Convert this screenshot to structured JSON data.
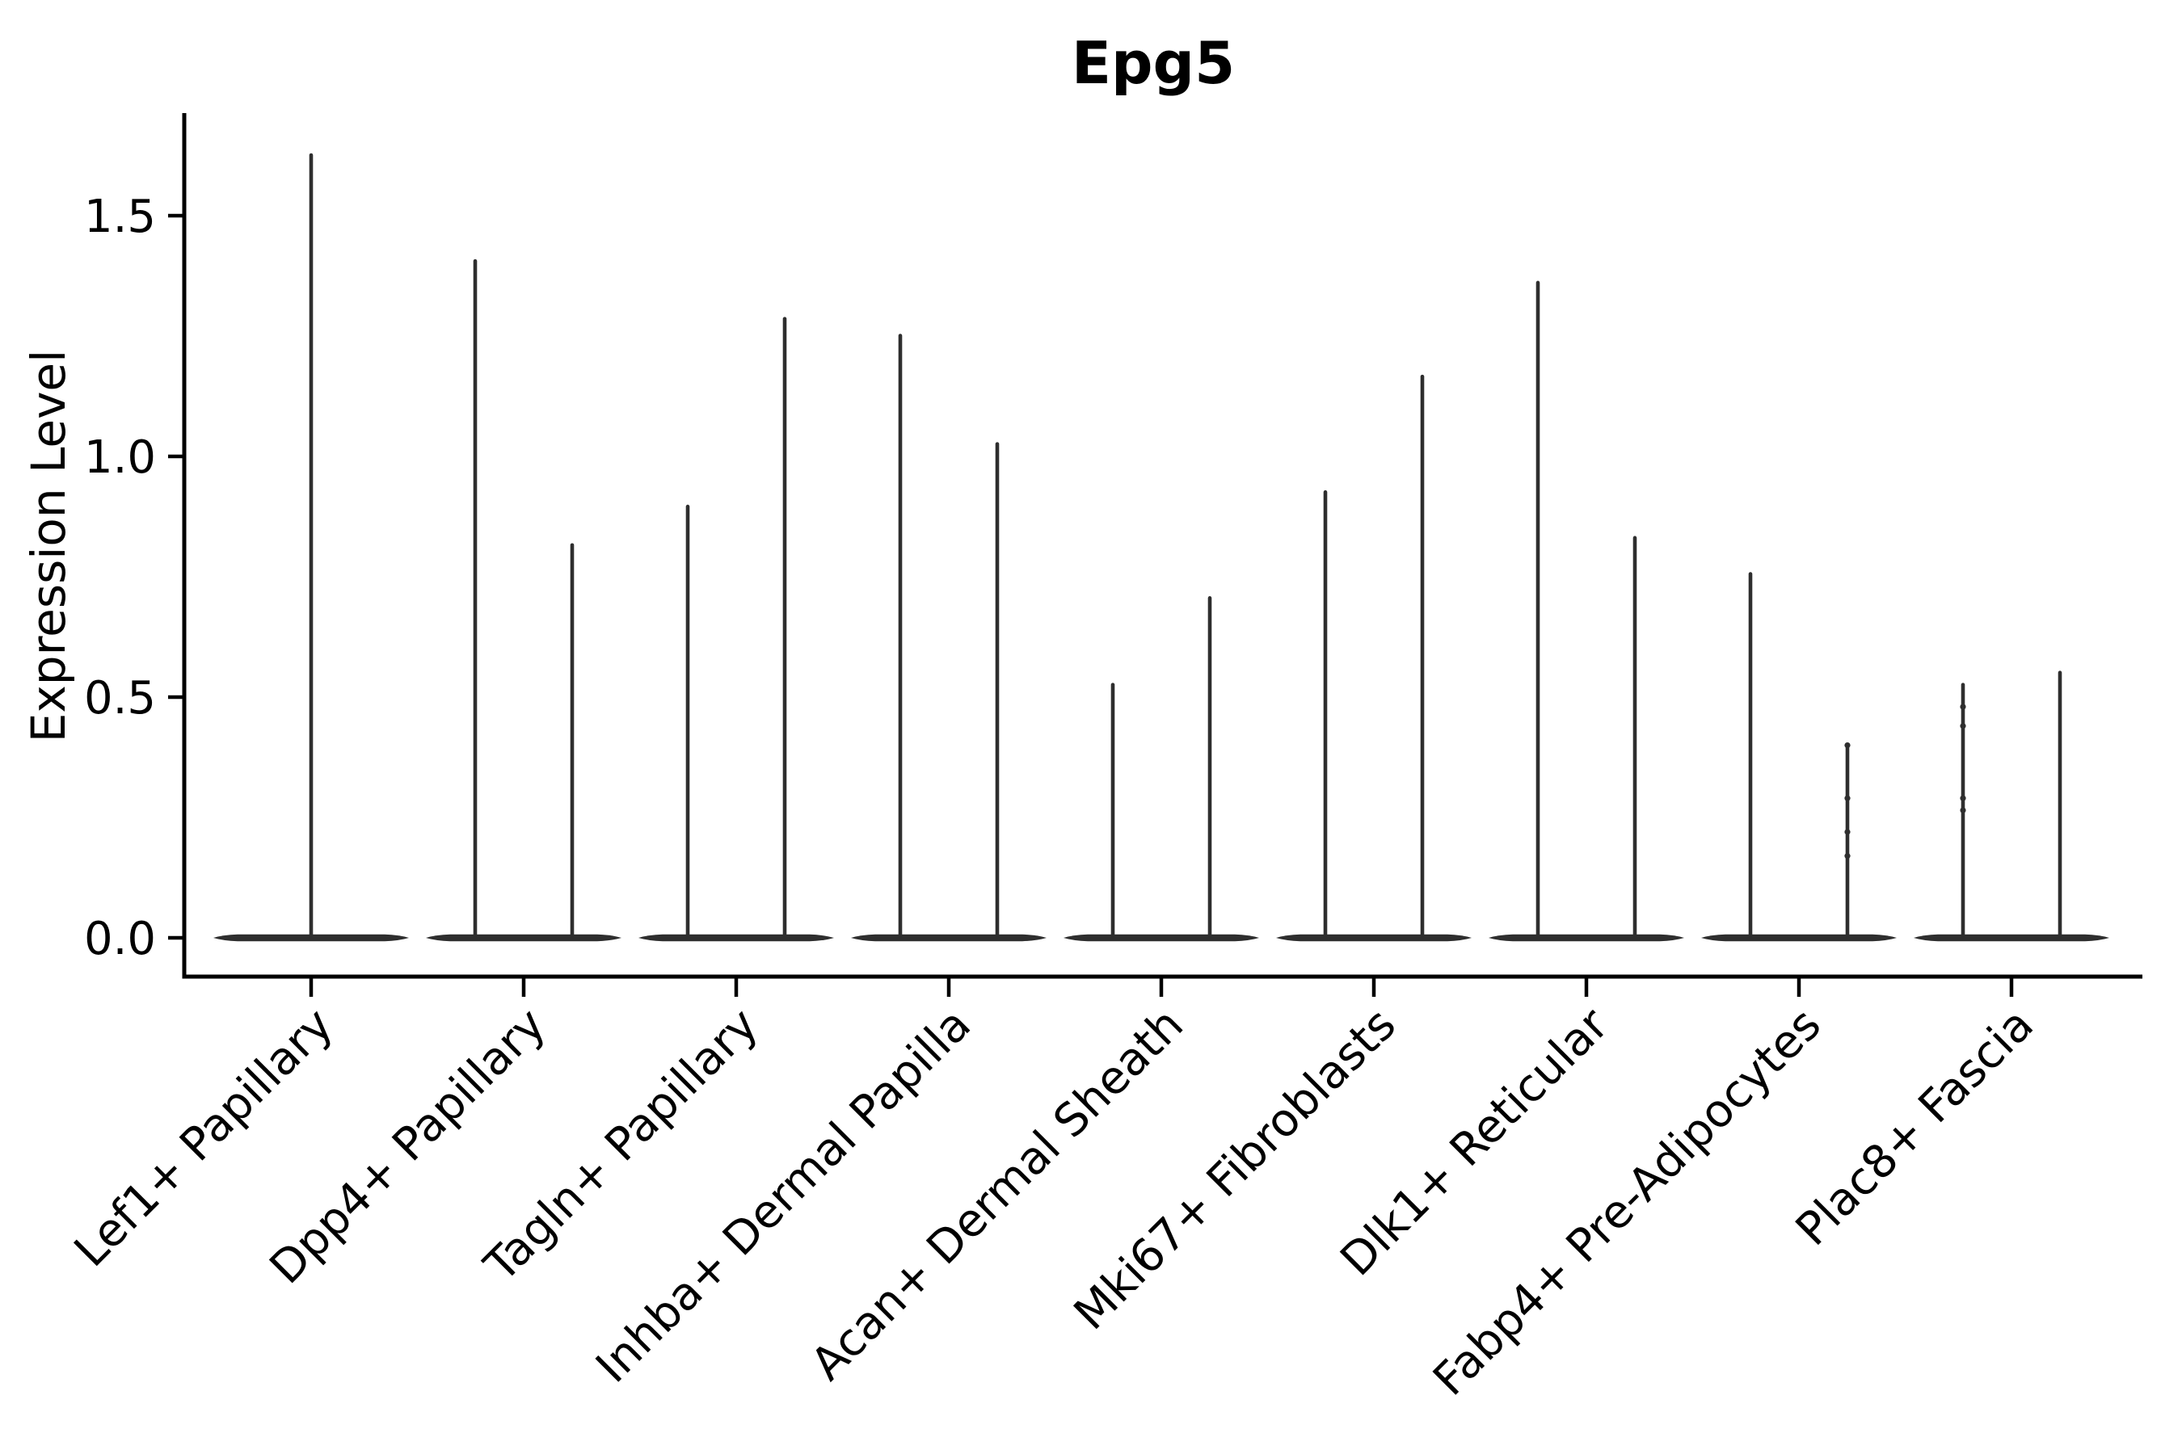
{
  "title": "Epg5",
  "ylabel": "Expression Level",
  "ytick_labels": [
    "0.0",
    "0.5",
    "1.0",
    "1.5"
  ],
  "chart_data": {
    "type": "violin",
    "title": "Epg5",
    "xlabel": "",
    "ylabel": "Expression Level",
    "yticks": [
      0.0,
      0.5,
      1.0,
      1.5
    ],
    "ylim": [
      -0.08,
      1.71
    ],
    "grid": false,
    "legend": false,
    "violin_style": "bulk of density at 0 (wide flat base), thin spike up to max expression",
    "colors": {
      "violin": "#2e2e2e",
      "axis": "#000000",
      "text": "#000000",
      "background": "#ffffff"
    },
    "categories": [
      "Lef1+ Papillary",
      "Dpp4+ Papillary",
      "Tagln+ Papillary",
      "Inhba+ Dermal Papilla",
      "Acan+ Dermal Sheath",
      "Mki67+ Fibroblasts",
      "Dlk1+ Reticular",
      "Fabp4+ Pre-Adipocytes",
      "Plac8+ Fascia"
    ],
    "groups": [
      {
        "label": "Lef1+ Papillary",
        "violins": [
          {
            "max": 1.63
          }
        ]
      },
      {
        "label": "Dpp4+ Papillary",
        "violins": [
          {
            "max": 1.41
          },
          {
            "max": 0.82
          }
        ]
      },
      {
        "label": "Tagln+ Papillary",
        "violins": [
          {
            "max": 0.9
          },
          {
            "max": 1.29
          }
        ]
      },
      {
        "label": "Inhba+ Dermal Papilla",
        "violins": [
          {
            "max": 1.255
          },
          {
            "max": 1.03
          }
        ]
      },
      {
        "label": "Acan+ Dermal Sheath",
        "violins": [
          {
            "max": 0.53
          },
          {
            "max": 0.71
          }
        ]
      },
      {
        "label": "Mki67+ Fibroblasts",
        "violins": [
          {
            "max": 0.93
          },
          {
            "max": 1.17
          }
        ]
      },
      {
        "label": "Dlk1+ Reticular",
        "violins": [
          {
            "max": 1.365
          },
          {
            "max": 0.835
          }
        ]
      },
      {
        "label": "Fabp4+ Pre-Adipocytes",
        "violins": [
          {
            "max": 0.76
          },
          {
            "max": 0.4,
            "points": [
              0.4,
              0.29,
              0.22,
              0.17
            ]
          }
        ]
      },
      {
        "label": "Plac8+ Fascia",
        "violins": [
          {
            "max": 0.53,
            "points": [
              0.48,
              0.44,
              0.29,
              0.265
            ]
          },
          {
            "max": 0.555
          }
        ]
      }
    ]
  }
}
